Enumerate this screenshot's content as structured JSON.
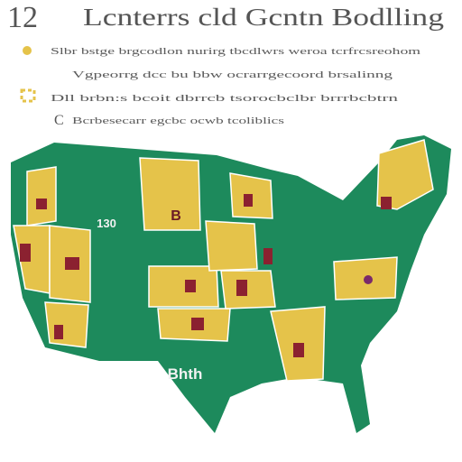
{
  "header": {
    "number": "12",
    "title": "Lcnterrs cld Gcntn Bodlling"
  },
  "legend": {
    "items": [
      {
        "text": "Slbr bstge brgcodlon nurirg tbcdlwrs weroa tcrfrcsreohom"
      },
      {
        "text": "Vgpeorrg dcc bu bbw ocrarrgecoord brsalinng"
      },
      {
        "text": "Dll brbn:s bcoit dbrrcb tsorocbclbr brrrbcbtrn"
      },
      {
        "text": "Bcrbesecarr egcbc ocwb tcoliblics"
      }
    ]
  },
  "map": {
    "labels": [
      {
        "text": "B"
      },
      {
        "text": "130"
      },
      {
        "text": "Bhth"
      }
    ]
  }
}
